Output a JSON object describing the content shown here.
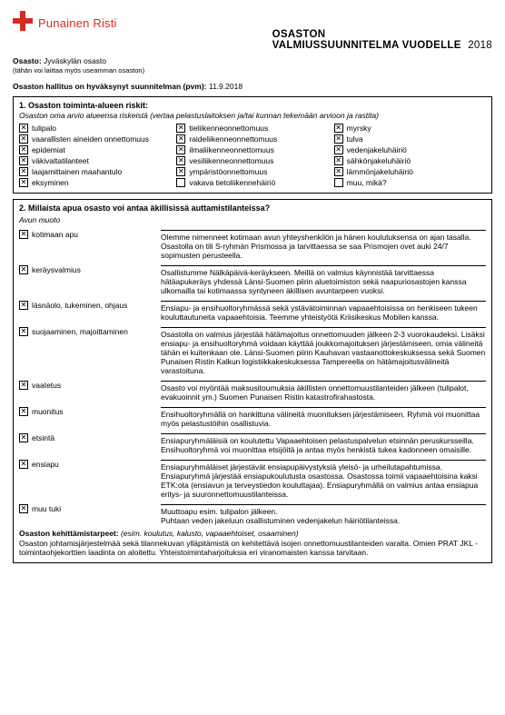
{
  "brand": "Punainen Risti",
  "header": {
    "line1": "OSASTON",
    "line2": "VALMIUSSUUNNITELMA VUODELLE",
    "year": "2018"
  },
  "meta": {
    "dept_label": "Osasto:",
    "dept_value": "Jyväskylän osasto",
    "dept_note": "(tähän voi laittaa myös useamman osaston)",
    "approved_label": "Osaston hallitus on hyväksynyt suunnitelman (pvm):",
    "approved_value": "11.9.2018"
  },
  "section1": {
    "title": "1. Osaston toiminta-alueen riskit:",
    "subtitle": "Osaston oma arvio alueensa riskeistä (vertaa pelastuslaitoksen ja/tai kunnan tekemään arvioon ja rastita)",
    "col1": [
      {
        "c": true,
        "t": "tulipalo"
      },
      {
        "c": true,
        "t": "vaarallisten aineiden onnettomuus"
      },
      {
        "c": true,
        "t": "epidemiat"
      },
      {
        "c": true,
        "t": "väkivaltatilanteet"
      },
      {
        "c": true,
        "t": "laajamittainen maahantulo"
      },
      {
        "c": true,
        "t": "eksyminen"
      }
    ],
    "col2": [
      {
        "c": true,
        "t": "tieliikenneonnettomuus"
      },
      {
        "c": true,
        "t": "raideliikenneonnettomuus"
      },
      {
        "c": true,
        "t": "ilmaliikenneonnettomuus"
      },
      {
        "c": true,
        "t": "vesiliikenneonnettomuus"
      },
      {
        "c": true,
        "t": "ympäristöonnettomuus"
      },
      {
        "c": false,
        "t": "vakava tietoliikennehäiriö"
      }
    ],
    "col3": [
      {
        "c": true,
        "t": "myrsky"
      },
      {
        "c": true,
        "t": "tulva"
      },
      {
        "c": true,
        "t": "vedenjakeluhäiriö"
      },
      {
        "c": true,
        "t": "sähkönjakeluhäiriö"
      },
      {
        "c": true,
        "t": "lämmönjakeluhäiriö"
      },
      {
        "c": false,
        "t": "muu, mikä?"
      }
    ]
  },
  "section2": {
    "title": "2. Millaista apua osasto voi antaa äkillisissä auttamistilanteissa?",
    "group_label": "Avun muoto",
    "rows": [
      {
        "c": true,
        "label": "kotimaan apu",
        "text": "Olemme nimenneet kotimaan avun yhteyshenkilön ja hänen koulutuksensa on ajan tasalla. Osastolla on tili S-ryhmän Prismossa ja tarvittaessa se saa Prismojen ovet auki 24/7 sopimusten perusteella."
      },
      {
        "c": true,
        "label": "keräysvalmius",
        "text": "Osallistumme Nälkäpäivä-keräykseen. Meillä on valmius käynnistää tarvittaessa hätäapukeräys yhdessä Länsi-Suomen piirin aluetoimiston sekä naapuriosastojen kanssa ulkomailla tai kotimaassa syntyneen äkillisen avuntarpeen vuoksi."
      },
      {
        "c": true,
        "label": "läsnäolo, tukeminen, ohjaus",
        "text": "Ensiapu- ja ensihuoltoryhmässä sekä ystävätoiminnan vapaaehtoisissa on henkiseen tukeen kouluttautuneita vapaaehtoisia. Teemme yhteistyötä Kriisikeskus Mobilen kanssa."
      },
      {
        "c": true,
        "label": "suojaaminen, majoittaminen",
        "text": "Osastolla on valmius järjestää hätämajoitus onnettomuuden jälkeen 2-3 vuorokaudeksi. Lisäksi ensiapu- ja ensihuoltoryhmä voidaan käyttää joukkomajoituksen järjestämiseen, omia välineitä tähän ei kuitenkaan ole. Länsi-Suomen piirin Kauhavan vastaanottokeskuksessa sekä Suomen Punaisen Ristin Kalkun logistiikkakeskuksessa Tampereella on hätämajoitusvälineitä varastoituna."
      },
      {
        "c": true,
        "label": "vaatetus",
        "text": "Osasto voi myöntää maksusitoumuksia äkillisten onnettomuustilanteiden jälkeen (tulipalot, evakuoinnit ym.) Suomen Punaisen Ristin katastrofirahastosta."
      },
      {
        "c": true,
        "label": "muonitus",
        "text": "Ensihuoltoryhmällä on hankittuna välineitä muonituksen järjestämiseen. Ryhmä voi muonittaa myös pelastustöihin osallistuvia."
      },
      {
        "c": true,
        "label": "etsintä",
        "text": "Ensiapuryhmäläisiä on koulutettu Vapaaehtoisen pelastuspalvelun etsinnän peruskursseilla. Ensihuoltoryhmä voi muonittaa etsijöitä ja antaa myös henkistä tukea kadonneen omaisille."
      },
      {
        "c": true,
        "label": "ensiapu",
        "text": "Ensiapuryhmäläiset järjestävät ensiapupäivystyksiä yleisö- ja urheilutapahtumissa. Ensiapuryhmä järjestää ensiapukoulutusta osastossa. Osastossa toimii vapaaehtoisina kaksi ETK:ota (ensiavun ja terveystiedon kouluttajaa). Ensiapuryhmällä on valmius antaa ensiapua eritys- ja suuronnettomuustilanteissa."
      },
      {
        "c": true,
        "label": "muu tuki",
        "text": "Muuttoapu esim. tulipalon jälkeen.\nPuhtaan veden jakeluun osallistuminen vedenjakelun häiriötilanteissa."
      }
    ],
    "dev_title": "Osaston kehittämistarpeet:",
    "dev_hint": "(esim. koulutus, kalusto, vapaaehtoiset, osaaminen)",
    "dev_text": "Osaston johtamisjärjestelmää sekä tilannekuvan ylläpitämistä on kehitettävä isojen onnettomuustilanteiden varalta. Omien PRAT JKL -toimintaohjekorttien laadinta on aloitettu. Yhteistoimintaharjoituksia eri viranomaisten kanssa tarvitaan."
  }
}
